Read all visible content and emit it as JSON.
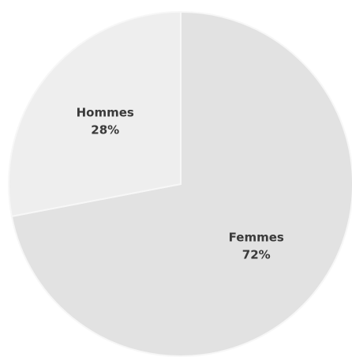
{
  "chart_data": {
    "type": "pie",
    "categories": [
      "Femmes",
      "Hommes"
    ],
    "values": [
      72,
      28
    ],
    "value_labels": [
      "72%",
      "28%"
    ],
    "colors": [
      "#e2e2e2",
      "#eeeeee"
    ],
    "start_angle": 0,
    "direction": "clockwise"
  }
}
